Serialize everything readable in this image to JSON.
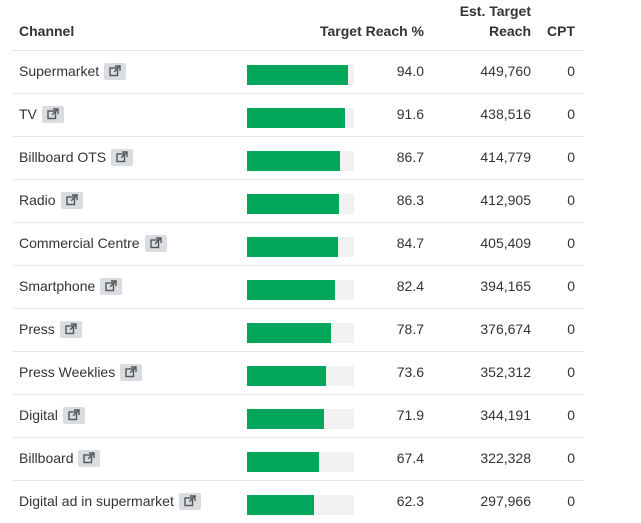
{
  "table": {
    "headers": {
      "channel": "Channel",
      "target_reach_pct": "Target Reach %",
      "est_target_reach": "Est. Target Reach",
      "cpt": "CPT"
    },
    "link_icon": "external-link-icon",
    "bar_color": "#00a65a",
    "rows": [
      {
        "channel": "Supermarket",
        "pct": "94.0",
        "pct_value": 94.0,
        "reach": "449,760",
        "cpt": "0"
      },
      {
        "channel": "TV",
        "pct": "91.6",
        "pct_value": 91.6,
        "reach": "438,516",
        "cpt": "0"
      },
      {
        "channel": "Billboard OTS",
        "pct": "86.7",
        "pct_value": 86.7,
        "reach": "414,779",
        "cpt": "0"
      },
      {
        "channel": "Radio",
        "pct": "86.3",
        "pct_value": 86.3,
        "reach": "412,905",
        "cpt": "0"
      },
      {
        "channel": "Commercial Centre",
        "pct": "84.7",
        "pct_value": 84.7,
        "reach": "405,409",
        "cpt": "0"
      },
      {
        "channel": "Smartphone",
        "pct": "82.4",
        "pct_value": 82.4,
        "reach": "394,165",
        "cpt": "0"
      },
      {
        "channel": "Press",
        "pct": "78.7",
        "pct_value": 78.7,
        "reach": "376,674",
        "cpt": "0"
      },
      {
        "channel": "Press Weeklies",
        "pct": "73.6",
        "pct_value": 73.6,
        "reach": "352,312",
        "cpt": "0"
      },
      {
        "channel": "Digital",
        "pct": "71.9",
        "pct_value": 71.9,
        "reach": "344,191",
        "cpt": "0"
      },
      {
        "channel": "Billboard",
        "pct": "67.4",
        "pct_value": 67.4,
        "reach": "322,328",
        "cpt": "0"
      },
      {
        "channel": "Digital ad in supermarket",
        "pct": "62.3",
        "pct_value": 62.3,
        "reach": "297,966",
        "cpt": "0"
      }
    ]
  }
}
